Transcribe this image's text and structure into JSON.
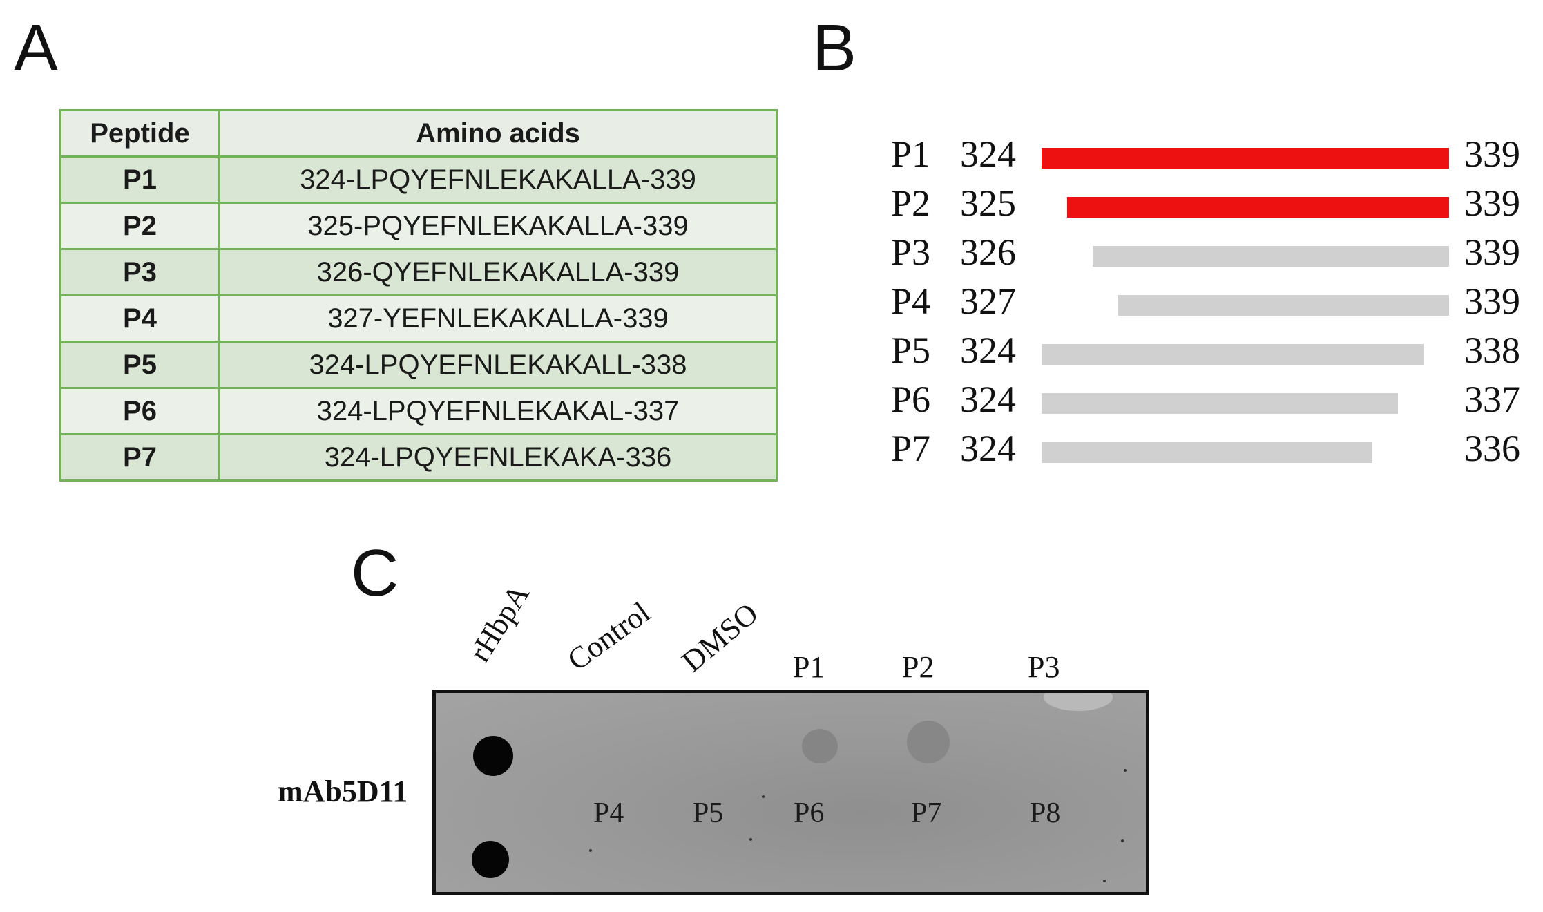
{
  "panels": {
    "a": "A",
    "b": "B",
    "c": "C"
  },
  "table": {
    "headers": [
      "Peptide",
      "Amino acids"
    ],
    "rows": [
      [
        "P1",
        "324-LPQYEFNLEKAKALLA-339"
      ],
      [
        "P2",
        "325-PQYEFNLEKAKALLA-339"
      ],
      [
        "P3",
        "326-QYEFNLEKAKALLA-339"
      ],
      [
        "P4",
        "327-YEFNLEKAKALLA-339"
      ],
      [
        "P5",
        "324-LPQYEFNLEKAKALL-338"
      ],
      [
        "P6",
        "324-LPQYEFNLEKAKAL-337"
      ],
      [
        "P7",
        "324-LPQYEFNLEKAKA-336"
      ]
    ]
  },
  "diagram": {
    "range": [
      324,
      339
    ],
    "colors": {
      "positive": "#ee1111",
      "negative": "#d0d0d0"
    },
    "rows": [
      {
        "name": "P1",
        "start": "324",
        "end": "339",
        "positive": true
      },
      {
        "name": "P2",
        "start": "325",
        "end": "339",
        "positive": true
      },
      {
        "name": "P3",
        "start": "326",
        "end": "339",
        "positive": false
      },
      {
        "name": "P4",
        "start": "327",
        "end": "339",
        "positive": false
      },
      {
        "name": "P5",
        "start": "324",
        "end": "338",
        "positive": false
      },
      {
        "name": "P6",
        "start": "324",
        "end": "337",
        "positive": false
      },
      {
        "name": "P7",
        "start": "324",
        "end": "336",
        "positive": false
      }
    ]
  },
  "blot": {
    "antibody": "mAb5D11",
    "rotated_labels": [
      "rHbpA",
      "Control",
      "DMSO"
    ],
    "top_labels": [
      "P1",
      "P2",
      "P3"
    ],
    "inner_labels": [
      "P4",
      "P5",
      "P6",
      "P7",
      "P8"
    ]
  }
}
